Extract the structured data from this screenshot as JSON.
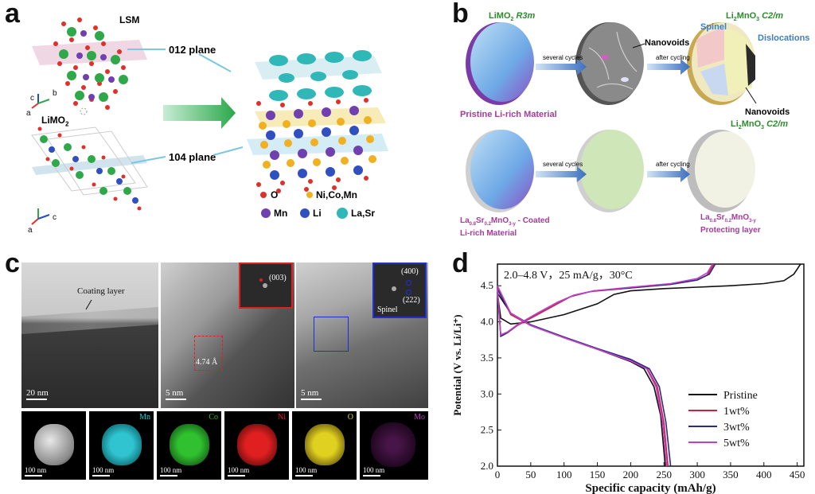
{
  "panels": {
    "a": "a",
    "b": "b",
    "c": "c",
    "d": "d"
  },
  "panel_a": {
    "lsm_label": "LSM",
    "limo2_label": "LiMO",
    "limo2_sub": "2",
    "plane_012": "012 plane",
    "plane_104": "104 plane",
    "axes1": {
      "c": "c",
      "b": "b",
      "a": "a"
    },
    "axes2": {
      "c": "c",
      "a": "a"
    },
    "legend": [
      {
        "label": "O",
        "color": "#e0302a"
      },
      {
        "label": "Ni,Co,Mn",
        "color": "#f0b020"
      },
      {
        "label": "Mn",
        "color": "#7040b0"
      },
      {
        "label": "Li",
        "color": "#3050c0"
      },
      {
        "label": "La,Sr",
        "color": "#30b0b0"
      }
    ]
  },
  "panel_b": {
    "top_label1": "LiMO",
    "top_label1_sub": "2",
    "top_label1_sym": "R3m",
    "top_label2": "Li",
    "top_label2_sub": "2",
    "top_label2_rest": "MnO",
    "top_label2_sub2": "3",
    "top_label2_sym": "C2/m",
    "spinel": "Spinel",
    "dislocations": "Dislocations",
    "nanovoids1": "Nanovoids",
    "nanovoids2": "Nanovoids",
    "several_cycles1": "several cycles",
    "after_cycling1": "after cycling",
    "several_cycles2": "several cycles",
    "after_cycling2": "after cycling",
    "pristine": "Pristine Li-rich Material",
    "bottom_label": "Li",
    "bottom_label_sub": "2",
    "bottom_label_rest": "MnO",
    "bottom_label_sub2": "3",
    "bottom_label_sym": "C2/m",
    "coated_line1_a": "La",
    "coated_line1_s1": "0.8",
    "coated_line1_b": "Sr",
    "coated_line1_s2": "0.2",
    "coated_line1_c": "MnO",
    "coated_line1_s3": "3-y",
    "coated_line1_d": " - Coated",
    "coated_line2": "Li-rich Material",
    "protect_line1_a": "La",
    "protect_line1_s1": "0.8",
    "protect_line1_b": "Sr",
    "protect_line1_s2": "0.2",
    "protect_line1_c": "MnO",
    "protect_line1_s3": "3-y",
    "protect_line2": "Protecting layer"
  },
  "panel_c": {
    "coating_layer": "Coating layer",
    "scale1": "20 nm",
    "scale2": "5 nm",
    "scale3": "5 nm",
    "fft1_label": "(003)",
    "fft2_label1": "(400)",
    "fft2_label2": "(222)",
    "fft2_spinel": "Spinel",
    "spacing": "4.74 Å",
    "maps": [
      {
        "label": "",
        "scale": "100 nm",
        "color": "#d8d8d8"
      },
      {
        "label": "Mn",
        "scale": "100 nm",
        "color": "#2fc4d0"
      },
      {
        "label": "Co",
        "scale": "100 nm",
        "color": "#30c030"
      },
      {
        "label": "Ni",
        "scale": "100 nm",
        "color": "#e02020"
      },
      {
        "label": "O",
        "scale": "100 nm",
        "color": "#e0d020"
      },
      {
        "label": "Mo",
        "scale": "100 nm",
        "color": "#c040c0"
      }
    ]
  },
  "chart_data": {
    "type": "line",
    "annotation": "2.0–4.8 V，25 mA/g，30°C",
    "xlabel": "Specific capacity (mAh/g)",
    "ylabel": "Potential (V vs. Li/Li⁺)",
    "xlim": [
      0,
      460
    ],
    "ylim": [
      2.0,
      4.8
    ],
    "xticks": [
      "0",
      "50",
      "100",
      "150",
      "200",
      "250",
      "300",
      "350",
      "400",
      "450"
    ],
    "yticks": [
      "2.0",
      "2.5",
      "3.0",
      "3.5",
      "4.0",
      "4.5"
    ],
    "legend_position": "bottom-right",
    "series": [
      {
        "name": "Pristine",
        "color": "#111111",
        "charge": [
          [
            0,
            4.4
          ],
          [
            5,
            4.05
          ],
          [
            20,
            3.97
          ],
          [
            50,
            4.0
          ],
          [
            100,
            4.1
          ],
          [
            150,
            4.25
          ],
          [
            175,
            4.38
          ],
          [
            200,
            4.43
          ],
          [
            250,
            4.46
          ],
          [
            300,
            4.48
          ],
          [
            350,
            4.5
          ],
          [
            400,
            4.53
          ],
          [
            430,
            4.57
          ],
          [
            445,
            4.66
          ],
          [
            455,
            4.8
          ]
        ],
        "discharge": [
          [
            0,
            4.4
          ],
          [
            20,
            4.12
          ],
          [
            50,
            3.95
          ],
          [
            100,
            3.78
          ],
          [
            150,
            3.62
          ],
          [
            200,
            3.45
          ],
          [
            220,
            3.35
          ],
          [
            235,
            3.1
          ],
          [
            245,
            2.7
          ],
          [
            252,
            2.0
          ]
        ]
      },
      {
        "name": "1wt%",
        "color": "#d02040",
        "charge": [
          [
            0,
            4.45
          ],
          [
            5,
            3.8
          ],
          [
            15,
            3.85
          ],
          [
            30,
            3.95
          ],
          [
            60,
            4.1
          ],
          [
            90,
            4.25
          ],
          [
            110,
            4.35
          ],
          [
            140,
            4.42
          ],
          [
            200,
            4.47
          ],
          [
            260,
            4.52
          ],
          [
            300,
            4.58
          ],
          [
            315,
            4.65
          ],
          [
            325,
            4.8
          ]
        ],
        "discharge": [
          [
            0,
            4.48
          ],
          [
            20,
            4.1
          ],
          [
            50,
            3.95
          ],
          [
            100,
            3.78
          ],
          [
            150,
            3.62
          ],
          [
            200,
            3.47
          ],
          [
            225,
            3.35
          ],
          [
            240,
            3.1
          ],
          [
            250,
            2.6
          ],
          [
            256,
            2.0
          ]
        ]
      },
      {
        "name": "3wt%",
        "color": "#2a2a88",
        "charge": [
          [
            0,
            4.42
          ],
          [
            5,
            3.8
          ],
          [
            15,
            3.85
          ],
          [
            30,
            3.96
          ],
          [
            60,
            4.12
          ],
          [
            90,
            4.27
          ],
          [
            115,
            4.37
          ],
          [
            145,
            4.43
          ],
          [
            200,
            4.47
          ],
          [
            260,
            4.52
          ],
          [
            300,
            4.58
          ],
          [
            318,
            4.66
          ],
          [
            327,
            4.8
          ]
        ],
        "discharge": [
          [
            0,
            4.45
          ],
          [
            20,
            4.12
          ],
          [
            50,
            3.96
          ],
          [
            100,
            3.79
          ],
          [
            150,
            3.63
          ],
          [
            200,
            3.48
          ],
          [
            228,
            3.35
          ],
          [
            243,
            3.1
          ],
          [
            253,
            2.6
          ],
          [
            260,
            2.0
          ]
        ]
      },
      {
        "name": "5wt%",
        "color": "#c040c8",
        "charge": [
          [
            0,
            4.46
          ],
          [
            5,
            3.82
          ],
          [
            15,
            3.86
          ],
          [
            30,
            3.96
          ],
          [
            60,
            4.12
          ],
          [
            90,
            4.27
          ],
          [
            115,
            4.37
          ],
          [
            145,
            4.43
          ],
          [
            200,
            4.48
          ],
          [
            260,
            4.53
          ],
          [
            300,
            4.6
          ],
          [
            315,
            4.68
          ],
          [
            323,
            4.8
          ]
        ],
        "discharge": [
          [
            0,
            4.5
          ],
          [
            20,
            4.12
          ],
          [
            50,
            3.95
          ],
          [
            100,
            3.78
          ],
          [
            150,
            3.62
          ],
          [
            200,
            3.46
          ],
          [
            224,
            3.35
          ],
          [
            238,
            3.1
          ],
          [
            248,
            2.6
          ],
          [
            254,
            2.0
          ]
        ]
      }
    ]
  }
}
